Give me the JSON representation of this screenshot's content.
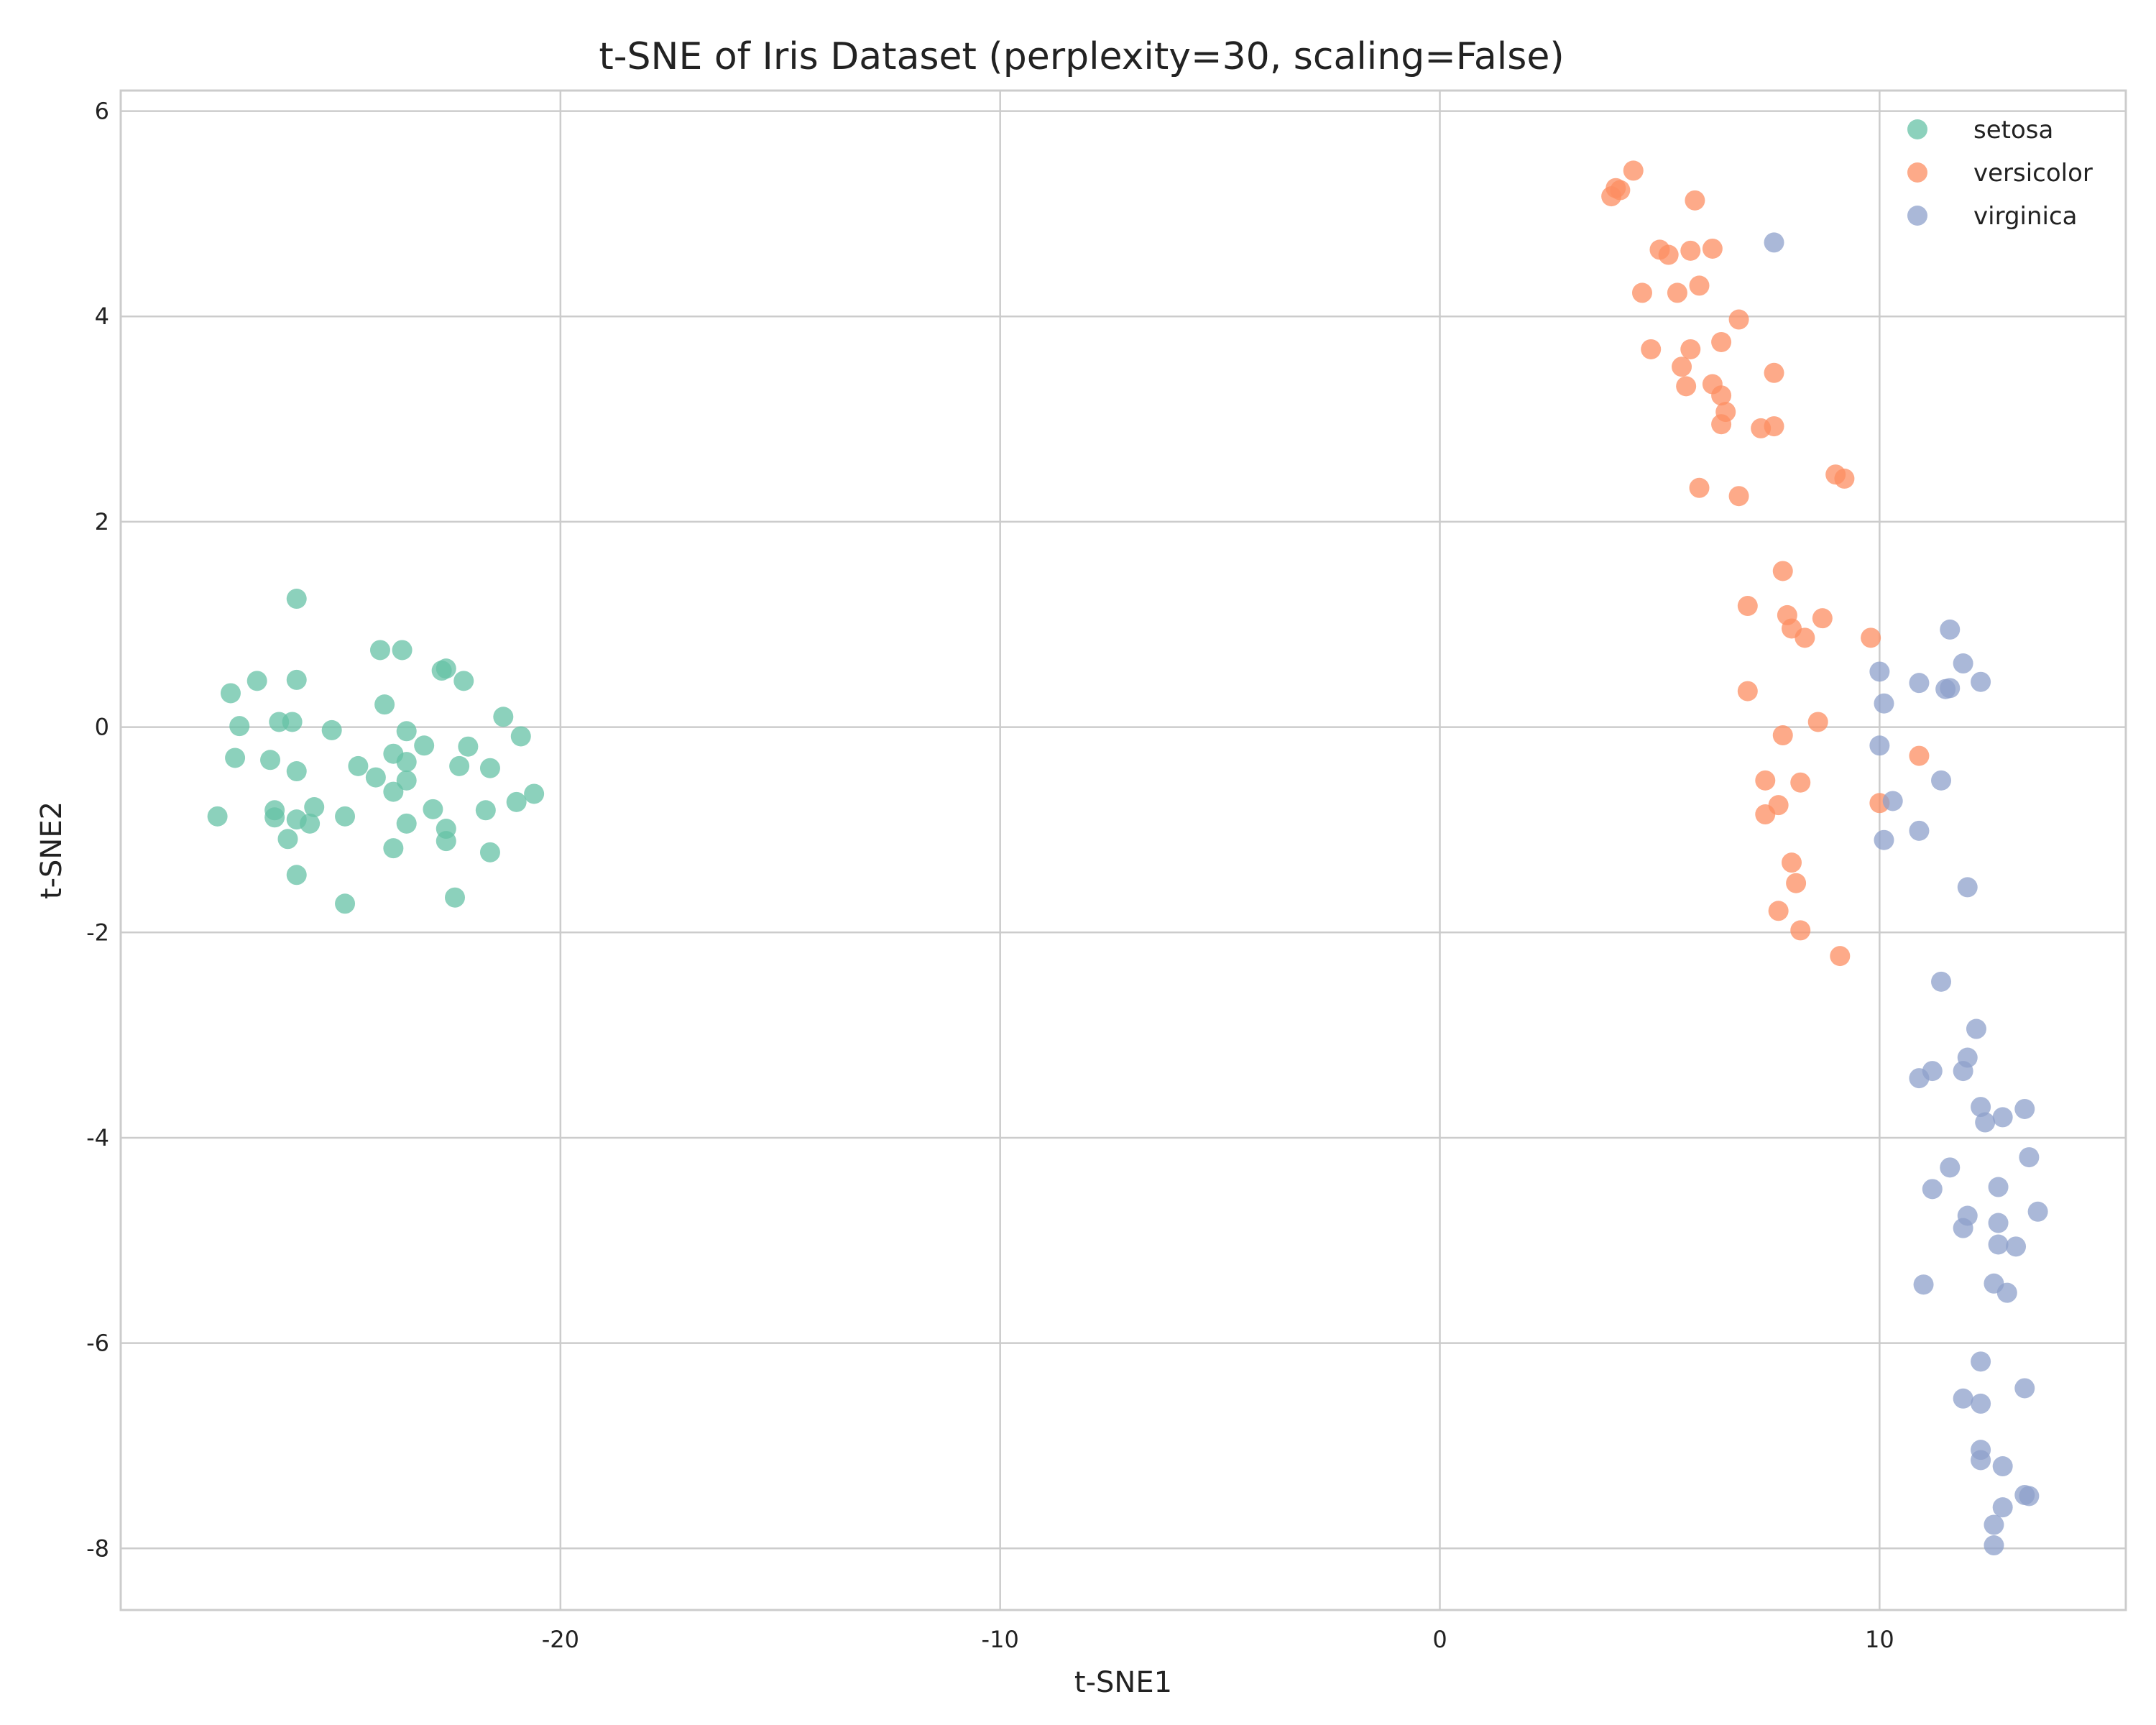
{
  "chart_data": {
    "type": "scatter",
    "title": "t-SNE of Iris Dataset (perplexity=30, scaling=False)",
    "xlabel": "t-SNE1",
    "ylabel": "t-SNE2",
    "xlim": [
      -30,
      15.6
    ],
    "ylim": [
      -8.6,
      6.2
    ],
    "x_ticks": [
      -20,
      -10,
      0,
      10
    ],
    "y_ticks": [
      -8,
      -6,
      -4,
      -2,
      0,
      2,
      4,
      6
    ],
    "grid": true,
    "legend_position": "top-right",
    "series": [
      {
        "name": "setosa",
        "color": "#66c2a5",
        "points": [
          [
            -26.0,
            1.25
          ],
          [
            -24.1,
            0.75
          ],
          [
            -23.6,
            0.75
          ],
          [
            -22.7,
            0.55
          ],
          [
            -22.6,
            0.57
          ],
          [
            -22.2,
            0.45
          ],
          [
            -26.9,
            0.45
          ],
          [
            -26.0,
            0.46
          ],
          [
            -27.5,
            0.33
          ],
          [
            -24.0,
            0.22
          ],
          [
            -21.3,
            0.1
          ],
          [
            -27.3,
            0.01
          ],
          [
            -26.4,
            0.05
          ],
          [
            -26.1,
            0.05
          ],
          [
            -25.2,
            -0.03
          ],
          [
            -23.5,
            -0.04
          ],
          [
            -20.9,
            -0.09
          ],
          [
            -23.1,
            -0.18
          ],
          [
            -22.1,
            -0.19
          ],
          [
            -27.4,
            -0.3
          ],
          [
            -26.6,
            -0.32
          ],
          [
            -23.8,
            -0.26
          ],
          [
            -23.5,
            -0.34
          ],
          [
            -24.6,
            -0.38
          ],
          [
            -22.3,
            -0.38
          ],
          [
            -21.6,
            -0.4
          ],
          [
            -26.0,
            -0.43
          ],
          [
            -24.2,
            -0.49
          ],
          [
            -23.5,
            -0.52
          ],
          [
            -23.8,
            -0.63
          ],
          [
            -20.6,
            -0.65
          ],
          [
            -21.0,
            -0.73
          ],
          [
            -25.6,
            -0.78
          ],
          [
            -26.5,
            -0.81
          ],
          [
            -22.9,
            -0.8
          ],
          [
            -21.7,
            -0.81
          ],
          [
            -27.8,
            -0.87
          ],
          [
            -26.5,
            -0.88
          ],
          [
            -24.9,
            -0.87
          ],
          [
            -26.0,
            -0.9
          ],
          [
            -25.7,
            -0.94
          ],
          [
            -23.5,
            -0.94
          ],
          [
            -22.6,
            -0.99
          ],
          [
            -26.2,
            -1.09
          ],
          [
            -22.6,
            -1.11
          ],
          [
            -23.8,
            -1.18
          ],
          [
            -21.6,
            -1.22
          ],
          [
            -26.0,
            -1.44
          ],
          [
            -22.4,
            -1.66
          ],
          [
            -24.9,
            -1.72
          ]
        ]
      },
      {
        "name": "versicolor",
        "color": "#fc8d62",
        "points": [
          [
            4.4,
            5.42
          ],
          [
            4.0,
            5.25
          ],
          [
            4.1,
            5.23
          ],
          [
            3.9,
            5.17
          ],
          [
            5.8,
            5.13
          ],
          [
            5.0,
            4.65
          ],
          [
            5.2,
            4.6
          ],
          [
            5.7,
            4.64
          ],
          [
            6.2,
            4.66
          ],
          [
            4.6,
            4.23
          ],
          [
            5.4,
            4.23
          ],
          [
            5.9,
            4.3
          ],
          [
            6.8,
            3.97
          ],
          [
            6.4,
            3.75
          ],
          [
            4.8,
            3.68
          ],
          [
            5.7,
            3.68
          ],
          [
            5.5,
            3.51
          ],
          [
            7.6,
            3.45
          ],
          [
            5.6,
            3.32
          ],
          [
            6.2,
            3.34
          ],
          [
            6.4,
            3.23
          ],
          [
            6.5,
            3.07
          ],
          [
            6.4,
            2.95
          ],
          [
            7.3,
            2.91
          ],
          [
            7.6,
            2.93
          ],
          [
            9.0,
            2.46
          ],
          [
            9.2,
            2.42
          ],
          [
            5.9,
            2.33
          ],
          [
            6.8,
            2.25
          ],
          [
            7.8,
            1.52
          ],
          [
            7.0,
            1.18
          ],
          [
            7.9,
            1.09
          ],
          [
            8.7,
            1.06
          ],
          [
            8.0,
            0.96
          ],
          [
            8.3,
            0.87
          ],
          [
            9.8,
            0.87
          ],
          [
            7.0,
            0.35
          ],
          [
            8.6,
            0.05
          ],
          [
            7.8,
            -0.08
          ],
          [
            10.9,
            -0.28
          ],
          [
            7.4,
            -0.52
          ],
          [
            8.2,
            -0.54
          ],
          [
            10.0,
            -0.74
          ],
          [
            7.7,
            -0.76
          ],
          [
            7.4,
            -0.85
          ],
          [
            8.0,
            -1.32
          ],
          [
            8.1,
            -1.52
          ],
          [
            7.7,
            -1.79
          ],
          [
            8.2,
            -1.98
          ],
          [
            9.1,
            -2.23
          ]
        ]
      },
      {
        "name": "virginica",
        "color": "#8da0cb",
        "points": [
          [
            7.6,
            4.72
          ],
          [
            11.6,
            0.95
          ],
          [
            11.9,
            0.62
          ],
          [
            10.0,
            0.54
          ],
          [
            12.3,
            0.44
          ],
          [
            10.9,
            0.43
          ],
          [
            11.5,
            0.37
          ],
          [
            11.6,
            0.38
          ],
          [
            10.1,
            0.23
          ],
          [
            10.0,
            -0.18
          ],
          [
            11.4,
            -0.52
          ],
          [
            10.3,
            -0.72
          ],
          [
            10.9,
            -1.01
          ],
          [
            10.1,
            -1.1
          ],
          [
            12.0,
            -1.56
          ],
          [
            11.4,
            -2.48
          ],
          [
            12.2,
            -2.94
          ],
          [
            12.0,
            -3.22
          ],
          [
            11.2,
            -3.35
          ],
          [
            11.9,
            -3.35
          ],
          [
            10.9,
            -3.42
          ],
          [
            13.3,
            -3.72
          ],
          [
            12.3,
            -3.7
          ],
          [
            12.8,
            -3.8
          ],
          [
            12.4,
            -3.85
          ],
          [
            13.4,
            -4.19
          ],
          [
            11.6,
            -4.29
          ],
          [
            11.2,
            -4.5
          ],
          [
            12.7,
            -4.48
          ],
          [
            13.6,
            -4.72
          ],
          [
            12.0,
            -4.76
          ],
          [
            12.7,
            -4.83
          ],
          [
            11.9,
            -4.88
          ],
          [
            12.7,
            -5.04
          ],
          [
            13.1,
            -5.06
          ],
          [
            11.0,
            -5.43
          ],
          [
            12.6,
            -5.42
          ],
          [
            12.9,
            -5.51
          ],
          [
            12.3,
            -6.18
          ],
          [
            13.3,
            -6.44
          ],
          [
            11.9,
            -6.54
          ],
          [
            12.3,
            -6.59
          ],
          [
            12.3,
            -7.04
          ],
          [
            12.3,
            -7.14
          ],
          [
            12.8,
            -7.2
          ],
          [
            13.4,
            -7.49
          ],
          [
            13.3,
            -7.48
          ],
          [
            12.8,
            -7.6
          ],
          [
            12.6,
            -7.77
          ],
          [
            12.6,
            -7.97
          ]
        ]
      }
    ]
  }
}
